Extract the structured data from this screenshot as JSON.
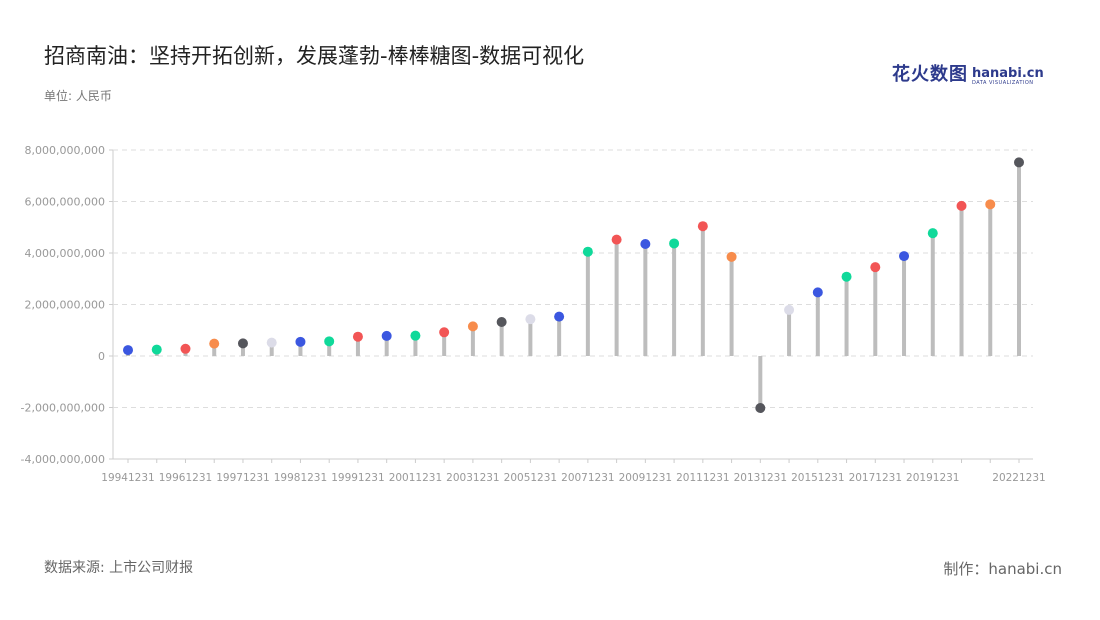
{
  "title": "招商南油：坚持开拓创新，发展蓬勃-棒棒糖图-数据可视化",
  "unit_label": "单位: 人民币",
  "source_label": "数据来源: 上市公司财报",
  "credit_label": "制作：hanabi.cn",
  "logo": {
    "cn": "花火数图",
    "en": "hanabi.cn",
    "sub": "DATA VISUALIZATION"
  },
  "chart_data": {
    "type": "lollipop",
    "ylim": [
      -4000000000,
      8000000000
    ],
    "y_ticks": [
      -4000000000,
      -2000000000,
      0,
      2000000000,
      4000000000,
      6000000000,
      8000000000
    ],
    "y_tick_labels": [
      "-4,000,000,000",
      "-2,000,000,000",
      "0",
      "2,000,000,000",
      "4,000,000,000",
      "6,000,000,000",
      "8,000,000,000"
    ],
    "x_tick_labels": [
      "19941231",
      "19961231",
      "19971231",
      "19981231",
      "19991231",
      "20011231",
      "20031231",
      "20051231",
      "20071231",
      "20091231",
      "20111231",
      "20131231",
      "20151231",
      "20171231",
      "20191231",
      "20221231"
    ],
    "x_tick_index": [
      0,
      2,
      4,
      6,
      8,
      10,
      12,
      14,
      16,
      18,
      20,
      22,
      24,
      26,
      28,
      31
    ],
    "grid": true,
    "stem_color": "#bdbdbd",
    "values": [
      230000000,
      250000000,
      280000000,
      480000000,
      490000000,
      520000000,
      550000000,
      570000000,
      750000000,
      780000000,
      790000000,
      920000000,
      1150000000,
      1320000000,
      1430000000,
      1530000000,
      4050000000,
      4520000000,
      4350000000,
      4370000000,
      5040000000,
      3850000000,
      -2020000000,
      1790000000,
      2470000000,
      3080000000,
      3450000000,
      3880000000,
      4770000000,
      5830000000,
      5890000000,
      7520000000
    ],
    "colors": [
      "#3b57e0",
      "#10d99a",
      "#f25555",
      "#f78c4c",
      "#55565c",
      "#dcdce8",
      "#3b57e0",
      "#10d99a",
      "#f25555",
      "#3b57e0",
      "#10d99a",
      "#f25555",
      "#f78c4c",
      "#55565c",
      "#dcdce8",
      "#3b57e0",
      "#10d99a",
      "#f25555",
      "#3b57e0",
      "#10d99a",
      "#f25555",
      "#f78c4c",
      "#55565c",
      "#dcdce8",
      "#3b57e0",
      "#10d99a",
      "#f25555",
      "#3b57e0",
      "#10d99a",
      "#f25555",
      "#f78c4c",
      "#55565c"
    ]
  }
}
